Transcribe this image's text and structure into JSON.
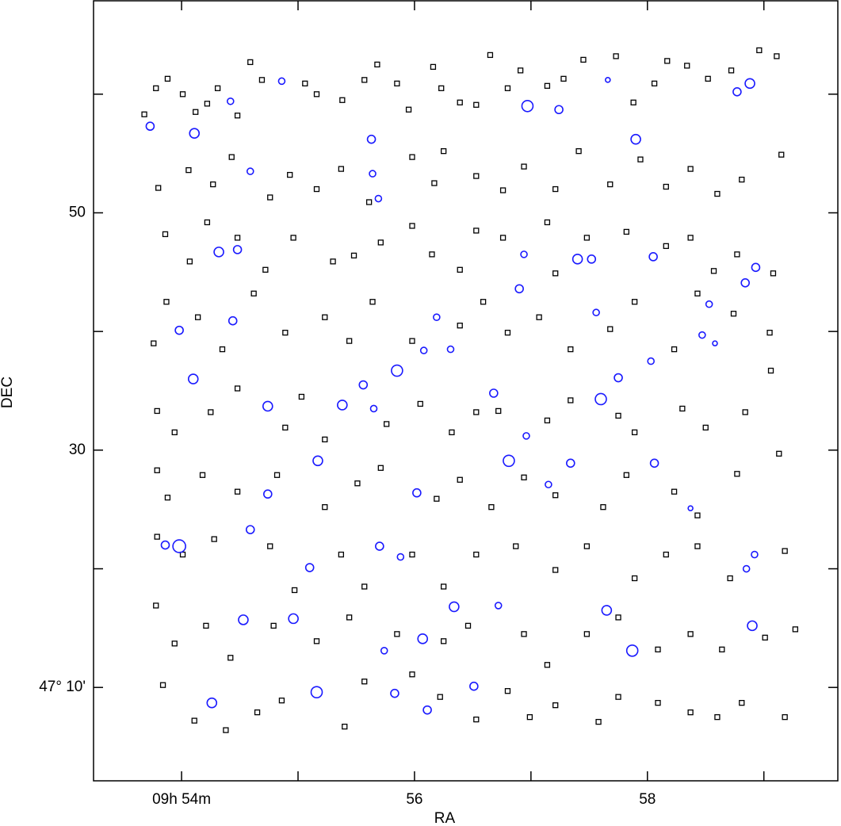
{
  "chart_data": {
    "type": "scatter",
    "xlabel": "RA",
    "ylabel": "DEC",
    "xlim": [
      53.244,
      59.635
    ],
    "ylim": [
      2.13,
      67.87
    ],
    "xticks": [
      {
        "value": 54,
        "label": "09h 54m"
      },
      {
        "value": 55,
        "label": null
      },
      56,
      {
        "value": 57,
        "label": null
      },
      58,
      {
        "value": 59,
        "label": null
      }
    ],
    "yticks": [
      {
        "value": 10,
        "label": "47° 10'"
      },
      {
        "value": 20,
        "label": null
      },
      30,
      {
        "value": 40,
        "label": null
      },
      50,
      {
        "value": 60,
        "label": null
      }
    ],
    "series": [
      {
        "marker": "square",
        "color": "#000000",
        "x": [
          53.68,
          53.78,
          53.88,
          54.01,
          54.12,
          54.22,
          54.31,
          54.48,
          54.59,
          54.69,
          55.06,
          55.16,
          55.38,
          55.57,
          55.68,
          55.85,
          55.95,
          56.16,
          56.23,
          56.39,
          56.53,
          56.65,
          56.8,
          56.91,
          57.14,
          57.28,
          57.45,
          57.73,
          57.88,
          58.06,
          58.17,
          58.34,
          58.52,
          58.72,
          58.96,
          59.11,
          53.8,
          54.06,
          54.27,
          54.43,
          54.76,
          54.93,
          55.16,
          55.37,
          55.61,
          55.98,
          56.17,
          56.25,
          56.53,
          56.76,
          56.94,
          57.21,
          57.41,
          57.68,
          57.94,
          58.16,
          58.37,
          58.6,
          58.81,
          59.15,
          53.86,
          54.07,
          54.22,
          54.48,
          54.72,
          54.96,
          55.3,
          55.48,
          55.71,
          55.98,
          56.15,
          56.39,
          56.53,
          56.76,
          57.14,
          57.21,
          57.48,
          57.82,
          58.16,
          58.37,
          58.57,
          58.77,
          59.08,
          53.76,
          53.87,
          54.14,
          54.35,
          54.62,
          54.89,
          55.23,
          55.44,
          55.64,
          55.98,
          56.39,
          56.59,
          56.8,
          57.07,
          57.34,
          57.68,
          57.89,
          58.23,
          58.43,
          58.74,
          59.05,
          53.79,
          53.94,
          54.25,
          54.48,
          54.89,
          55.03,
          55.23,
          55.76,
          56.05,
          56.32,
          56.53,
          56.72,
          57.14,
          57.34,
          57.75,
          57.89,
          58.3,
          58.5,
          58.84,
          59.06,
          53.79,
          53.88,
          54.18,
          54.48,
          54.82,
          55.23,
          55.51,
          55.71,
          56.19,
          56.39,
          56.66,
          56.94,
          57.21,
          57.62,
          57.82,
          58.23,
          58.43,
          58.77,
          59.13,
          53.79,
          54.01,
          54.28,
          54.76,
          54.97,
          55.37,
          55.57,
          55.98,
          56.25,
          56.53,
          56.87,
          57.21,
          57.48,
          57.89,
          58.16,
          58.43,
          58.71,
          59.18,
          53.78,
          53.94,
          54.21,
          54.42,
          54.79,
          55.16,
          55.44,
          55.85,
          56.25,
          56.46,
          56.94,
          57.14,
          57.48,
          57.75,
          58.09,
          58.37,
          58.64,
          59.01,
          59.27,
          53.84,
          54.11,
          54.38,
          54.65,
          54.86,
          55.4,
          55.57,
          55.98,
          56.22,
          56.53,
          56.8,
          56.99,
          57.21,
          57.58,
          57.75,
          58.09,
          58.37,
          58.6,
          58.81,
          59.18
        ],
        "y": [
          58.3,
          60.5,
          61.3,
          60.0,
          58.5,
          59.2,
          60.5,
          58.2,
          62.7,
          61.2,
          60.9,
          60.0,
          59.5,
          61.2,
          62.5,
          60.9,
          58.7,
          62.3,
          60.5,
          59.3,
          59.1,
          63.3,
          60.5,
          62.0,
          60.7,
          61.3,
          62.9,
          63.2,
          59.3,
          60.9,
          62.8,
          62.4,
          61.3,
          62.0,
          63.7,
          63.2,
          52.1,
          53.6,
          52.4,
          54.7,
          51.3,
          53.2,
          52.0,
          53.7,
          50.9,
          54.7,
          52.5,
          55.2,
          53.1,
          51.9,
          53.9,
          52.0,
          55.2,
          52.4,
          54.5,
          52.2,
          53.7,
          51.6,
          52.8,
          54.9,
          48.2,
          45.9,
          49.2,
          47.9,
          45.2,
          47.9,
          45.9,
          46.4,
          47.5,
          48.9,
          46.5,
          45.2,
          48.5,
          47.9,
          49.2,
          44.9,
          47.9,
          48.4,
          47.2,
          47.9,
          45.1,
          46.5,
          44.9,
          39.0,
          42.5,
          41.2,
          38.5,
          43.2,
          39.9,
          41.2,
          39.2,
          42.5,
          39.2,
          40.5,
          42.5,
          39.9,
          41.2,
          38.5,
          40.2,
          42.5,
          38.5,
          43.2,
          41.5,
          39.9,
          33.3,
          31.5,
          33.2,
          35.2,
          31.9,
          34.5,
          30.9,
          32.2,
          33.9,
          31.5,
          33.2,
          33.3,
          32.5,
          34.2,
          32.9,
          31.5,
          33.5,
          31.9,
          33.2,
          36.7,
          28.3,
          26.0,
          27.9,
          26.5,
          27.9,
          25.2,
          27.2,
          28.5,
          25.9,
          27.5,
          25.2,
          27.7,
          26.2,
          25.2,
          27.9,
          26.5,
          24.5,
          28.0,
          29.7,
          22.7,
          21.2,
          22.5,
          21.9,
          18.2,
          21.2,
          18.5,
          21.2,
          18.5,
          21.2,
          21.9,
          19.9,
          21.9,
          19.2,
          21.2,
          21.9,
          19.2,
          21.5,
          16.9,
          13.7,
          15.2,
          12.5,
          15.2,
          13.9,
          15.9,
          14.5,
          13.9,
          15.2,
          14.5,
          11.9,
          14.5,
          15.9,
          13.2,
          14.5,
          13.2,
          14.2,
          14.9,
          10.2,
          7.2,
          6.4,
          7.9,
          8.9,
          6.7,
          10.5,
          11.1,
          9.2,
          7.3,
          9.7,
          7.5,
          8.5,
          7.1,
          9.2,
          8.7,
          7.9,
          7.5,
          8.7,
          7.5
        ]
      },
      {
        "marker": "circle",
        "color": "#1a1aff",
        "x": [
          53.73,
          54.11,
          54.42,
          54.86,
          55.63,
          55.64,
          54.59,
          55.69,
          56.97,
          57.24,
          57.66,
          58.77,
          58.88,
          57.9,
          54.32,
          54.48,
          56.94,
          57.4,
          57.52,
          58.05,
          58.93,
          58.84,
          56.9,
          57.56,
          54.44,
          53.98,
          56.08,
          56.31,
          56.19,
          58.53,
          58.47,
          58.58,
          58.03,
          54.1,
          55.85,
          55.56,
          55.38,
          55.65,
          54.74,
          56.68,
          57.6,
          57.75,
          56.96,
          56.81,
          57.34,
          58.06,
          55.17,
          56.02,
          54.74,
          57.15,
          54.59,
          58.37,
          53.86,
          53.98,
          55.7,
          55.88,
          55.1,
          58.92,
          58.85,
          56.34,
          56.72,
          57.65,
          54.53,
          54.96,
          58.9,
          56.07,
          55.74,
          57.87,
          54.26,
          55.16,
          55.83,
          56.11,
          56.51
        ],
        "y": [
          57.3,
          56.7,
          59.4,
          61.1,
          56.2,
          53.3,
          53.5,
          51.2,
          59.0,
          58.7,
          61.2,
          60.2,
          60.9,
          56.2,
          46.7,
          46.9,
          46.5,
          46.1,
          46.1,
          46.3,
          45.4,
          44.1,
          43.6,
          41.6,
          40.9,
          40.1,
          38.4,
          38.5,
          41.2,
          42.3,
          39.7,
          39.0,
          37.5,
          36.0,
          36.7,
          35.5,
          33.8,
          33.5,
          33.7,
          34.8,
          34.3,
          36.1,
          31.2,
          29.1,
          28.9,
          28.9,
          29.1,
          26.4,
          26.3,
          27.1,
          23.3,
          25.1,
          22.0,
          21.9,
          21.9,
          21.0,
          20.1,
          21.2,
          20.0,
          16.8,
          16.9,
          16.5,
          15.7,
          15.8,
          15.2,
          14.1,
          13.1,
          13.1,
          8.7,
          9.6,
          9.5,
          8.1,
          10.1
        ],
        "sizes": [
          5,
          6,
          4,
          4,
          5,
          4,
          4,
          4,
          7,
          5,
          3,
          5,
          6,
          6,
          6,
          5,
          4,
          6,
          5,
          5,
          5,
          5,
          5,
          4,
          5,
          5,
          4,
          4,
          4,
          4,
          4,
          3,
          4,
          6,
          7,
          5,
          6,
          4,
          6,
          5,
          7,
          5,
          4,
          7,
          5,
          5,
          6,
          5,
          5,
          4,
          5,
          3,
          5,
          8,
          5,
          4,
          5,
          4,
          4,
          6,
          4,
          6,
          6,
          6,
          6,
          6,
          4,
          7,
          6,
          7,
          5,
          5,
          5
        ]
      }
    ]
  }
}
